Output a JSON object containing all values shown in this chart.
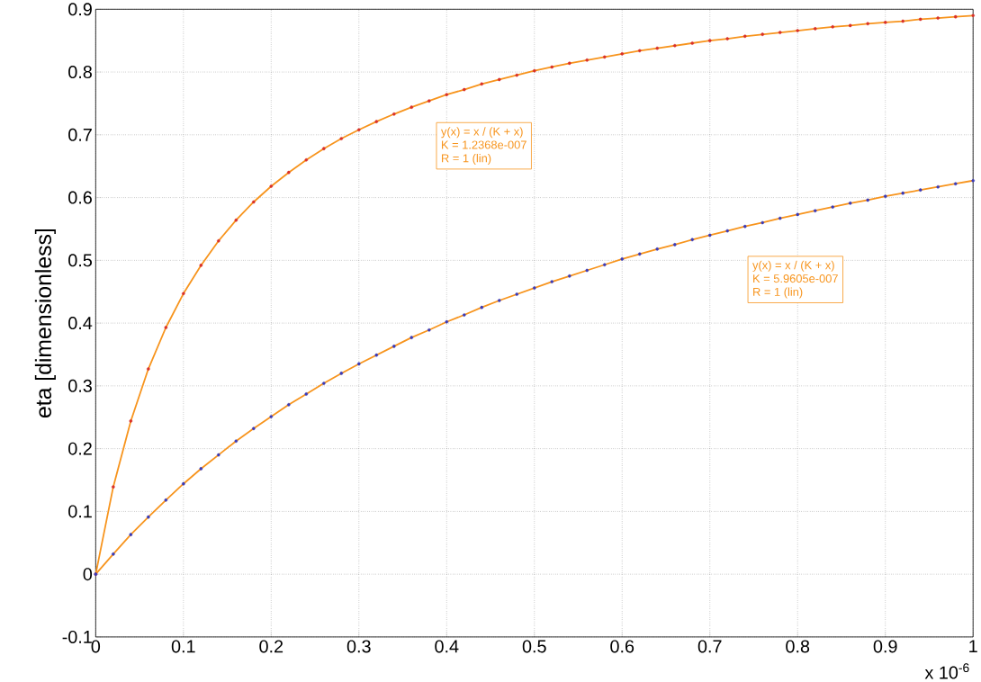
{
  "chart_data": {
    "type": "line",
    "ylabel": "eta [dimensionless]",
    "xlim": [
      0,
      1
    ],
    "ylim": [
      -0.1,
      0.9
    ],
    "xticks": [
      0,
      0.1,
      0.2,
      0.3,
      0.4,
      0.5,
      0.6,
      0.7,
      0.8,
      0.9,
      1
    ],
    "yticks": [
      -0.1,
      0,
      0.1,
      0.2,
      0.3,
      0.4,
      0.5,
      0.6,
      0.7,
      0.8,
      0.9
    ],
    "grid": true,
    "x": [
      0,
      0.02,
      0.04,
      0.06,
      0.08,
      0.1,
      0.12,
      0.14,
      0.16,
      0.18,
      0.2,
      0.22,
      0.24,
      0.26,
      0.28,
      0.3,
      0.32,
      0.34,
      0.36,
      0.38,
      0.4,
      0.42,
      0.44,
      0.46,
      0.48,
      0.5,
      0.52,
      0.54,
      0.56,
      0.58,
      0.6,
      0.62,
      0.64,
      0.66,
      0.68,
      0.7,
      0.72,
      0.74,
      0.76,
      0.78,
      0.8,
      0.82,
      0.84,
      0.86,
      0.88,
      0.9,
      0.92,
      0.94,
      0.96,
      0.98,
      1
    ],
    "series": [
      {
        "marker": "none",
        "color": "#f7941d",
        "values": [
          0,
          0.139,
          0.244,
          0.327,
          0.393,
          0.447,
          0.492,
          0.531,
          0.564,
          0.593,
          0.618,
          0.64,
          0.66,
          0.678,
          0.694,
          0.708,
          0.721,
          0.733,
          0.744,
          0.754,
          0.764,
          0.772,
          0.781,
          0.788,
          0.795,
          0.802,
          0.808,
          0.814,
          0.819,
          0.824,
          0.829,
          0.834,
          0.838,
          0.842,
          0.846,
          0.85,
          0.853,
          0.857,
          0.86,
          0.863,
          0.866,
          0.869,
          0.872,
          0.874,
          0.877,
          0.879,
          0.881,
          0.884,
          0.886,
          0.888,
          0.89
        ]
      },
      {
        "marker": "none",
        "color": "#f7941d",
        "values": [
          0,
          0.032,
          0.063,
          0.091,
          0.118,
          0.144,
          0.168,
          0.19,
          0.212,
          0.232,
          0.251,
          0.27,
          0.287,
          0.304,
          0.32,
          0.335,
          0.349,
          0.363,
          0.377,
          0.389,
          0.402,
          0.413,
          0.425,
          0.436,
          0.446,
          0.456,
          0.466,
          0.475,
          0.484,
          0.493,
          0.502,
          0.51,
          0.518,
          0.525,
          0.533,
          0.54,
          0.547,
          0.554,
          0.56,
          0.567,
          0.573,
          0.579,
          0.585,
          0.591,
          0.596,
          0.602,
          0.607,
          0.612,
          0.617,
          0.622,
          0.627
        ]
      },
      {
        "type": "scatter",
        "marker": "circle",
        "color": "#d9302a",
        "values": [
          0,
          0.139,
          0.244,
          0.327,
          0.393,
          0.447,
          0.492,
          0.531,
          0.564,
          0.593,
          0.618,
          0.64,
          0.66,
          0.678,
          0.694,
          0.708,
          0.721,
          0.733,
          0.744,
          0.754,
          0.764,
          0.772,
          0.781,
          0.788,
          0.795,
          0.802,
          0.808,
          0.814,
          0.819,
          0.824,
          0.829,
          0.834,
          0.838,
          0.842,
          0.846,
          0.85,
          0.853,
          0.857,
          0.86,
          0.863,
          0.866,
          0.869,
          0.872,
          0.874,
          0.877,
          0.879,
          0.881,
          0.884,
          0.886,
          0.888,
          0.89
        ]
      },
      {
        "type": "scatter",
        "marker": "circle",
        "color": "#3a3ab8",
        "values": [
          0,
          0.032,
          0.063,
          0.091,
          0.118,
          0.144,
          0.168,
          0.19,
          0.212,
          0.232,
          0.251,
          0.27,
          0.287,
          0.304,
          0.32,
          0.335,
          0.349,
          0.363,
          0.377,
          0.389,
          0.402,
          0.413,
          0.425,
          0.436,
          0.446,
          0.456,
          0.466,
          0.475,
          0.484,
          0.493,
          0.502,
          0.51,
          0.518,
          0.525,
          0.533,
          0.54,
          0.547,
          0.554,
          0.56,
          0.567,
          0.573,
          0.579,
          0.585,
          0.591,
          0.596,
          0.602,
          0.607,
          0.612,
          0.617,
          0.622,
          0.627
        ]
      }
    ],
    "annotations": [
      "y(x) = x / (K + x)",
      "K = 1.2368e-007",
      "R = 1  (lin)",
      "y(x) = x / (K + x)",
      "K = 5.9605e-007",
      "R = 1  (lin)",
      "x 10$^{-6}$"
    ]
  }
}
